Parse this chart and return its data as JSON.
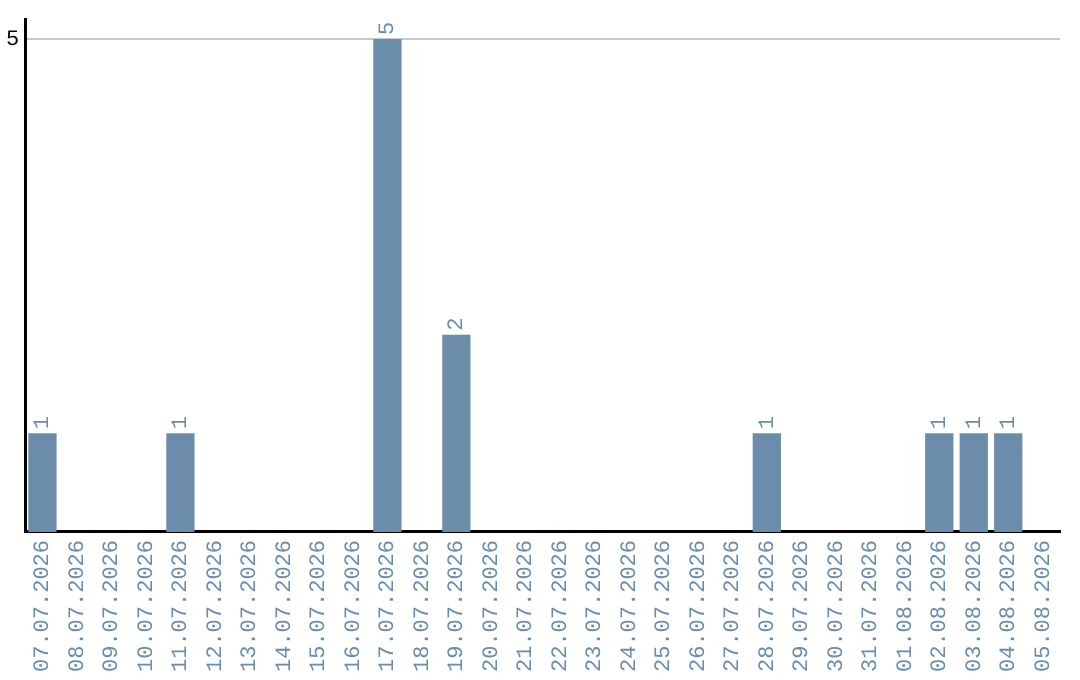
{
  "chart_data": {
    "type": "bar",
    "categories": [
      "07.07.2026",
      "08.07.2026",
      "09.07.2026",
      "10.07.2026",
      "11.07.2026",
      "12.07.2026",
      "13.07.2026",
      "14.07.2026",
      "15.07.2026",
      "16.07.2026",
      "17.07.2026",
      "18.07.2026",
      "19.07.2026",
      "20.07.2026",
      "21.07.2026",
      "22.07.2026",
      "23.07.2026",
      "24.07.2026",
      "25.07.2026",
      "26.07.2026",
      "27.07.2026",
      "28.07.2026",
      "29.07.2026",
      "30.07.2026",
      "31.07.2026",
      "01.08.2026",
      "02.08.2026",
      "03.08.2026",
      "04.08.2026",
      "05.08.2026"
    ],
    "values": [
      1,
      0,
      0,
      0,
      1,
      0,
      0,
      0,
      0,
      0,
      5,
      0,
      2,
      0,
      0,
      0,
      0,
      0,
      0,
      0,
      0,
      1,
      0,
      0,
      0,
      0,
      1,
      1,
      1,
      0
    ],
    "value_labels": [
      "1",
      null,
      null,
      null,
      "1",
      null,
      null,
      null,
      null,
      null,
      "5",
      null,
      "2",
      null,
      null,
      null,
      null,
      null,
      null,
      null,
      null,
      "1",
      null,
      null,
      null,
      null,
      "1",
      "1",
      "1",
      null
    ],
    "color": "#6b8cab",
    "ylim": [
      0,
      5.2
    ],
    "yticks": [
      5
    ],
    "grid": "y",
    "legend": false
  }
}
